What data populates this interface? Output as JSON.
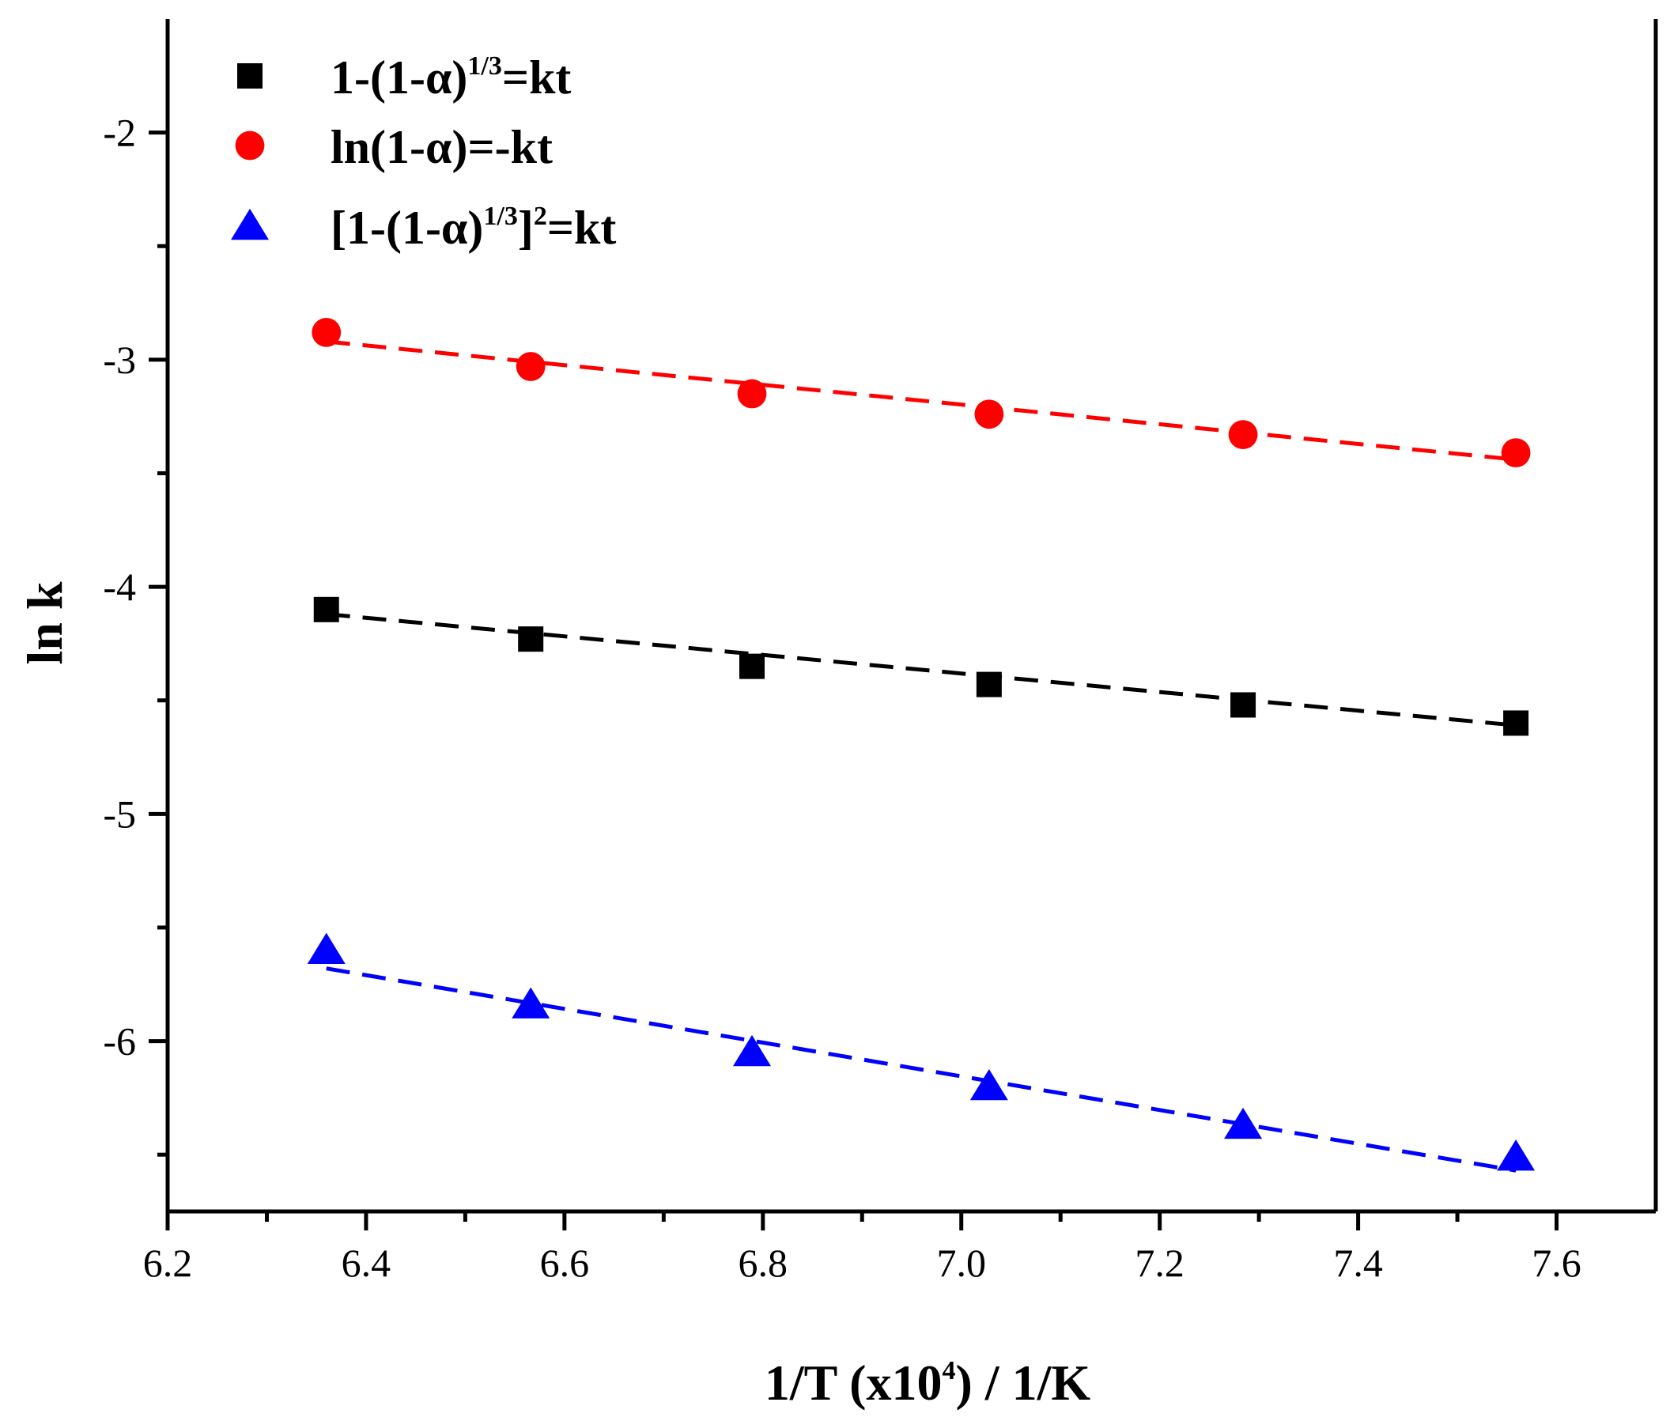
{
  "chart_data": {
    "type": "scatter",
    "title": "",
    "xlabel": {
      "prefix": "1/T (x10",
      "sup": "4",
      "suffix": ") / 1/K"
    },
    "ylabel": "ln k",
    "xlim": [
      6.2,
      7.7
    ],
    "ylim": [
      -6.75,
      -1.5
    ],
    "x_ticks": [
      6.2,
      6.4,
      6.6,
      6.8,
      7.0,
      7.2,
      7.4,
      7.6
    ],
    "x_tick_labels": [
      "6.2",
      "6.4",
      "6.6",
      "6.8",
      "7.0",
      "7.2",
      "7.4",
      "7.6"
    ],
    "x_minor_ticks": [
      6.3,
      6.5,
      6.7,
      6.9,
      7.1,
      7.3,
      7.5
    ],
    "y_ticks": [
      -2,
      -3,
      -4,
      -5,
      -6
    ],
    "y_tick_labels": [
      "-2",
      "-3",
      "-4",
      "-5",
      "-6"
    ],
    "y_minor_ticks": [
      -2.5,
      -3.5,
      -4.5,
      -5.5,
      -6.5
    ],
    "grid": false,
    "legend_position": "top-left",
    "x": [
      6.36,
      6.566,
      6.789,
      7.028,
      7.284,
      7.559
    ],
    "series": [
      {
        "name": "1-(1-α)^(1/3)=kt",
        "legend_parts": [
          {
            "t": "1-(1-α)"
          },
          {
            "t": "1/3",
            "sup": true
          },
          {
            "t": "=kt"
          }
        ],
        "marker": "square",
        "color": "#000000",
        "values": [
          -4.1,
          -4.23,
          -4.35,
          -4.43,
          -4.52,
          -4.6
        ],
        "fit": {
          "x": [
            6.36,
            7.559
          ],
          "y": [
            -4.12,
            -4.61
          ]
        }
      },
      {
        "name": "ln(1-α)=-kt",
        "legend_parts": [
          {
            "t": "ln(1-α)=-kt"
          }
        ],
        "marker": "circle",
        "color": "#ff0000",
        "values": [
          -2.88,
          -3.03,
          -3.15,
          -3.24,
          -3.33,
          -3.41
        ],
        "fit": {
          "x": [
            6.36,
            7.559
          ],
          "y": [
            -2.92,
            -3.44
          ]
        }
      },
      {
        "name": "[1-(1-α)^(1/3)]^2=kt",
        "legend_parts": [
          {
            "t": "[1-(1-α)"
          },
          {
            "t": "1/3",
            "sup": true
          },
          {
            "t": "]"
          },
          {
            "t": "2",
            "sup": true
          },
          {
            "t": "=kt"
          }
        ],
        "marker": "triangle",
        "color": "#0000ff",
        "values": [
          -5.6,
          -5.84,
          -6.05,
          -6.2,
          -6.37,
          -6.51
        ],
        "fit": {
          "x": [
            6.36,
            7.559
          ],
          "y": [
            -5.68,
            -6.57
          ]
        }
      }
    ]
  }
}
